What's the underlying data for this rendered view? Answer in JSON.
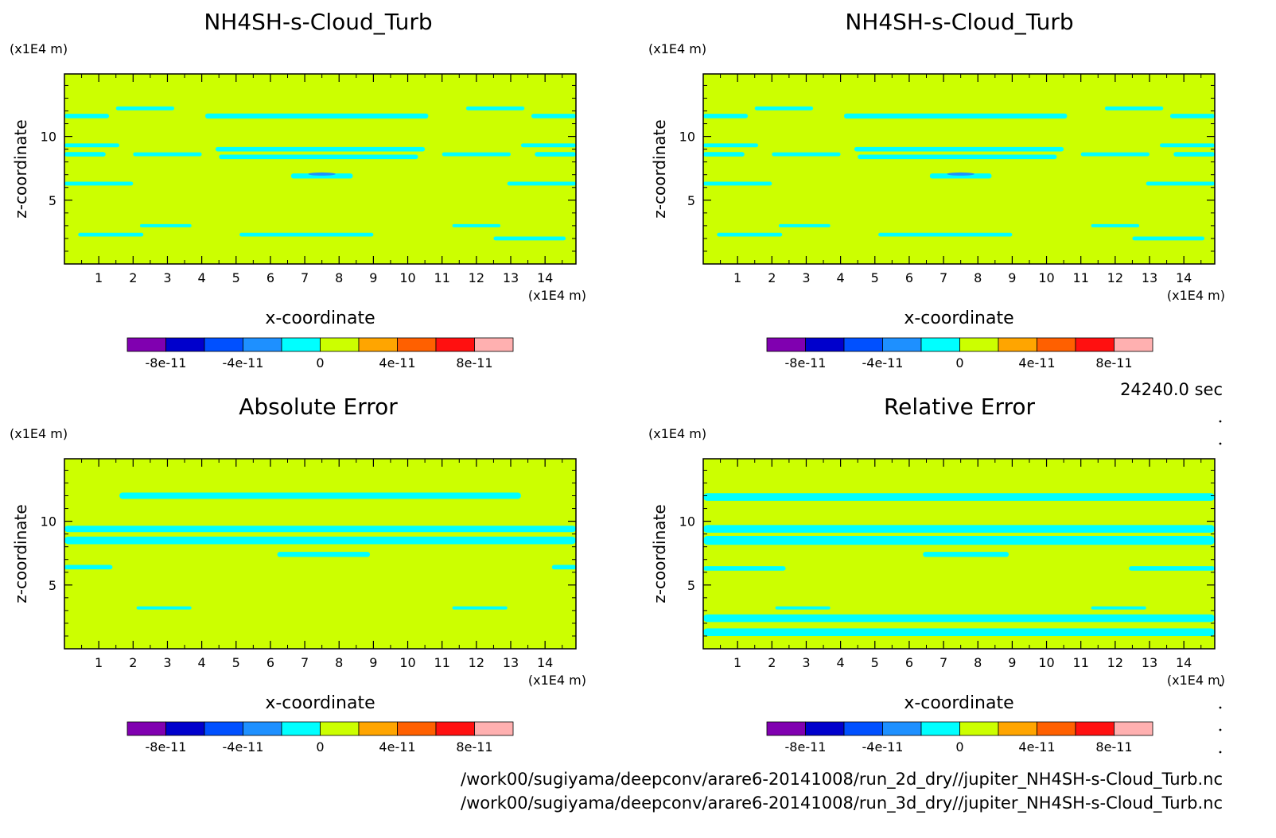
{
  "timestamp": "24240.0 sec",
  "files": [
    "/work00/sugiyama/deepconv/arare6-20141008/run_2d_dry//jupiter_NH4SH-s-Cloud_Turb.nc",
    "/work00/sugiyama/deepconv/arare6-20141008/run_3d_dry//jupiter_NH4SH-s-Cloud_Turb.nc"
  ],
  "colors": {
    "background_field": "#ccff00",
    "contour_fill": "#00ffff",
    "deep_fill": "#1e90ff"
  },
  "colorbar": {
    "levels": [
      -1e-10,
      -8e-11,
      -6e-11,
      -4e-11,
      -2e-11,
      0,
      2e-11,
      4e-11,
      6e-11,
      8e-11,
      1e-10
    ],
    "colors": [
      "#8000b0",
      "#0000cc",
      "#0050ff",
      "#1e90ff",
      "#00ffff",
      "#ccff00",
      "#ffa500",
      "#ff6000",
      "#ff1010",
      "#ffb0b0"
    ],
    "tick_labels": [
      {
        "value": -8e-11,
        "label": "-8e-11"
      },
      {
        "value": -4e-11,
        "label": "-4e-11"
      },
      {
        "value": 0,
        "label": "0"
      },
      {
        "value": 4e-11,
        "label": "4e-11"
      },
      {
        "value": 8e-11,
        "label": "8e-11"
      }
    ]
  },
  "chart_data": [
    {
      "type": "heatmap",
      "title": "NH4SH-s-Cloud_Turb",
      "xlabel": "x-coordinate",
      "ylabel": "z-coordinate",
      "x_unit": "(x1E4 m)",
      "y_unit": "(x1E4 m)",
      "xlim": [
        0,
        14.9
      ],
      "ylim": [
        0,
        14.9
      ],
      "x_ticks": [
        "1",
        "2",
        "3",
        "4",
        "5",
        "6",
        "7",
        "8",
        "9",
        "10",
        "11",
        "12",
        "13",
        "14"
      ],
      "y_ticks": [
        "5",
        "10"
      ],
      "bands": [
        {
          "z": 11.6,
          "x0": 0,
          "x1": 1.3,
          "h": 0.35
        },
        {
          "z": 11.6,
          "x0": 4.1,
          "x1": 10.6,
          "h": 0.4
        },
        {
          "z": 11.6,
          "x0": 13.6,
          "x1": 14.9,
          "h": 0.35
        },
        {
          "z": 12.2,
          "x0": 1.5,
          "x1": 3.2,
          "h": 0.3
        },
        {
          "z": 12.2,
          "x0": 11.7,
          "x1": 13.4,
          "h": 0.3
        },
        {
          "z": 9.3,
          "x0": 0,
          "x1": 1.6,
          "h": 0.3
        },
        {
          "z": 9.3,
          "x0": 13.3,
          "x1": 14.9,
          "h": 0.3
        },
        {
          "z": 9.0,
          "x0": 4.4,
          "x1": 10.5,
          "h": 0.35
        },
        {
          "z": 8.6,
          "x0": 0,
          "x1": 1.2,
          "h": 0.35
        },
        {
          "z": 8.6,
          "x0": 2.0,
          "x1": 4.0,
          "h": 0.3
        },
        {
          "z": 8.4,
          "x0": 4.5,
          "x1": 10.3,
          "h": 0.35
        },
        {
          "z": 8.6,
          "x0": 11.0,
          "x1": 13.0,
          "h": 0.3
        },
        {
          "z": 8.6,
          "x0": 13.7,
          "x1": 14.9,
          "h": 0.35
        },
        {
          "z": 6.3,
          "x0": 0,
          "x1": 2.0,
          "h": 0.3
        },
        {
          "z": 6.3,
          "x0": 12.9,
          "x1": 14.9,
          "h": 0.3
        },
        {
          "z": 6.9,
          "x0": 6.6,
          "x1": 8.4,
          "h": 0.4
        },
        {
          "z": 3.0,
          "x0": 2.2,
          "x1": 3.7,
          "h": 0.25
        },
        {
          "z": 3.0,
          "x0": 11.3,
          "x1": 12.7,
          "h": 0.25
        },
        {
          "z": 2.3,
          "x0": 0.4,
          "x1": 2.3,
          "h": 0.3
        },
        {
          "z": 2.3,
          "x0": 5.1,
          "x1": 9.0,
          "h": 0.3
        },
        {
          "z": 2.0,
          "x0": 12.5,
          "x1": 14.6,
          "h": 0.3
        }
      ],
      "deep_spots": [
        {
          "x": 7.5,
          "z": 7.05,
          "w": 0.8,
          "h": 0.25
        }
      ]
    },
    {
      "type": "heatmap",
      "title": "NH4SH-s-Cloud_Turb",
      "xlabel": "x-coordinate",
      "ylabel": "z-coordinate",
      "x_unit": "(x1E4 m)",
      "y_unit": "(x1E4 m)",
      "xlim": [
        0,
        14.9
      ],
      "ylim": [
        0,
        14.9
      ],
      "x_ticks": [
        "1",
        "2",
        "3",
        "4",
        "5",
        "6",
        "7",
        "8",
        "9",
        "10",
        "11",
        "12",
        "13",
        "14"
      ],
      "y_ticks": [
        "5",
        "10"
      ],
      "bands": [
        {
          "z": 11.6,
          "x0": 0,
          "x1": 1.3,
          "h": 0.35
        },
        {
          "z": 11.6,
          "x0": 4.1,
          "x1": 10.6,
          "h": 0.4
        },
        {
          "z": 11.6,
          "x0": 13.6,
          "x1": 14.9,
          "h": 0.35
        },
        {
          "z": 12.2,
          "x0": 1.5,
          "x1": 3.2,
          "h": 0.3
        },
        {
          "z": 12.2,
          "x0": 11.7,
          "x1": 13.4,
          "h": 0.3
        },
        {
          "z": 9.3,
          "x0": 0,
          "x1": 1.6,
          "h": 0.3
        },
        {
          "z": 9.3,
          "x0": 13.3,
          "x1": 14.9,
          "h": 0.3
        },
        {
          "z": 9.0,
          "x0": 4.4,
          "x1": 10.5,
          "h": 0.35
        },
        {
          "z": 8.6,
          "x0": 0,
          "x1": 1.2,
          "h": 0.35
        },
        {
          "z": 8.6,
          "x0": 2.0,
          "x1": 4.0,
          "h": 0.3
        },
        {
          "z": 8.4,
          "x0": 4.5,
          "x1": 10.3,
          "h": 0.35
        },
        {
          "z": 8.6,
          "x0": 11.0,
          "x1": 13.0,
          "h": 0.3
        },
        {
          "z": 8.6,
          "x0": 13.7,
          "x1": 14.9,
          "h": 0.35
        },
        {
          "z": 6.3,
          "x0": 0,
          "x1": 2.0,
          "h": 0.3
        },
        {
          "z": 6.3,
          "x0": 12.9,
          "x1": 14.9,
          "h": 0.3
        },
        {
          "z": 6.9,
          "x0": 6.6,
          "x1": 8.4,
          "h": 0.4
        },
        {
          "z": 3.0,
          "x0": 2.2,
          "x1": 3.7,
          "h": 0.25
        },
        {
          "z": 3.0,
          "x0": 11.3,
          "x1": 12.7,
          "h": 0.25
        },
        {
          "z": 2.3,
          "x0": 0.4,
          "x1": 2.3,
          "h": 0.3
        },
        {
          "z": 2.3,
          "x0": 5.1,
          "x1": 9.0,
          "h": 0.3
        },
        {
          "z": 2.0,
          "x0": 12.5,
          "x1": 14.6,
          "h": 0.3
        }
      ],
      "deep_spots": [
        {
          "x": 7.5,
          "z": 7.05,
          "w": 0.8,
          "h": 0.25
        }
      ]
    },
    {
      "type": "heatmap",
      "title": "Absolute Error",
      "xlabel": "x-coordinate",
      "ylabel": "z-coordinate",
      "x_unit": "(x1E4 m)",
      "y_unit": "(x1E4 m)",
      "xlim": [
        0,
        14.9
      ],
      "ylim": [
        0,
        14.9
      ],
      "x_ticks": [
        "1",
        "2",
        "3",
        "4",
        "5",
        "6",
        "7",
        "8",
        "9",
        "10",
        "11",
        "12",
        "13",
        "14"
      ],
      "y_ticks": [
        "5",
        "10"
      ],
      "bands": [
        {
          "z": 12.0,
          "x0": 1.6,
          "x1": 13.3,
          "h": 0.5
        },
        {
          "z": 9.4,
          "x0": 0,
          "x1": 14.9,
          "h": 0.5
        },
        {
          "z": 8.5,
          "x0": 0,
          "x1": 14.9,
          "h": 0.6
        },
        {
          "z": 7.4,
          "x0": 6.2,
          "x1": 8.9,
          "h": 0.4
        },
        {
          "z": 6.4,
          "x0": 0,
          "x1": 1.4,
          "h": 0.35
        },
        {
          "z": 6.4,
          "x0": 14.2,
          "x1": 14.9,
          "h": 0.35
        },
        {
          "z": 3.2,
          "x0": 2.1,
          "x1": 3.7,
          "h": 0.25
        },
        {
          "z": 3.2,
          "x0": 11.3,
          "x1": 12.9,
          "h": 0.25
        }
      ],
      "deep_spots": []
    },
    {
      "type": "heatmap",
      "title": "Relative Error",
      "xlabel": "x-coordinate",
      "ylabel": "z-coordinate",
      "x_unit": "(x1E4 m)",
      "y_unit": "(x1E4 m)",
      "xlim": [
        0,
        14.9
      ],
      "ylim": [
        0,
        14.9
      ],
      "x_ticks": [
        "1",
        "2",
        "3",
        "4",
        "5",
        "6",
        "7",
        "8",
        "9",
        "10",
        "11",
        "12",
        "13",
        "14"
      ],
      "y_ticks": [
        "5",
        "10"
      ],
      "bands": [
        {
          "z": 11.9,
          "x0": 0,
          "x1": 14.9,
          "h": 0.6
        },
        {
          "z": 9.4,
          "x0": 0,
          "x1": 14.9,
          "h": 0.6
        },
        {
          "z": 8.5,
          "x0": 0,
          "x1": 14.9,
          "h": 0.7
        },
        {
          "z": 7.4,
          "x0": 6.4,
          "x1": 8.9,
          "h": 0.4
        },
        {
          "z": 6.3,
          "x0": 0,
          "x1": 2.4,
          "h": 0.35
        },
        {
          "z": 6.3,
          "x0": 12.4,
          "x1": 14.9,
          "h": 0.35
        },
        {
          "z": 3.2,
          "x0": 2.1,
          "x1": 3.7,
          "h": 0.25
        },
        {
          "z": 3.2,
          "x0": 11.3,
          "x1": 12.9,
          "h": 0.25
        },
        {
          "z": 2.4,
          "x0": 0,
          "x1": 14.9,
          "h": 0.6
        },
        {
          "z": 1.3,
          "x0": 0,
          "x1": 14.9,
          "h": 0.6
        }
      ],
      "deep_spots": []
    }
  ]
}
